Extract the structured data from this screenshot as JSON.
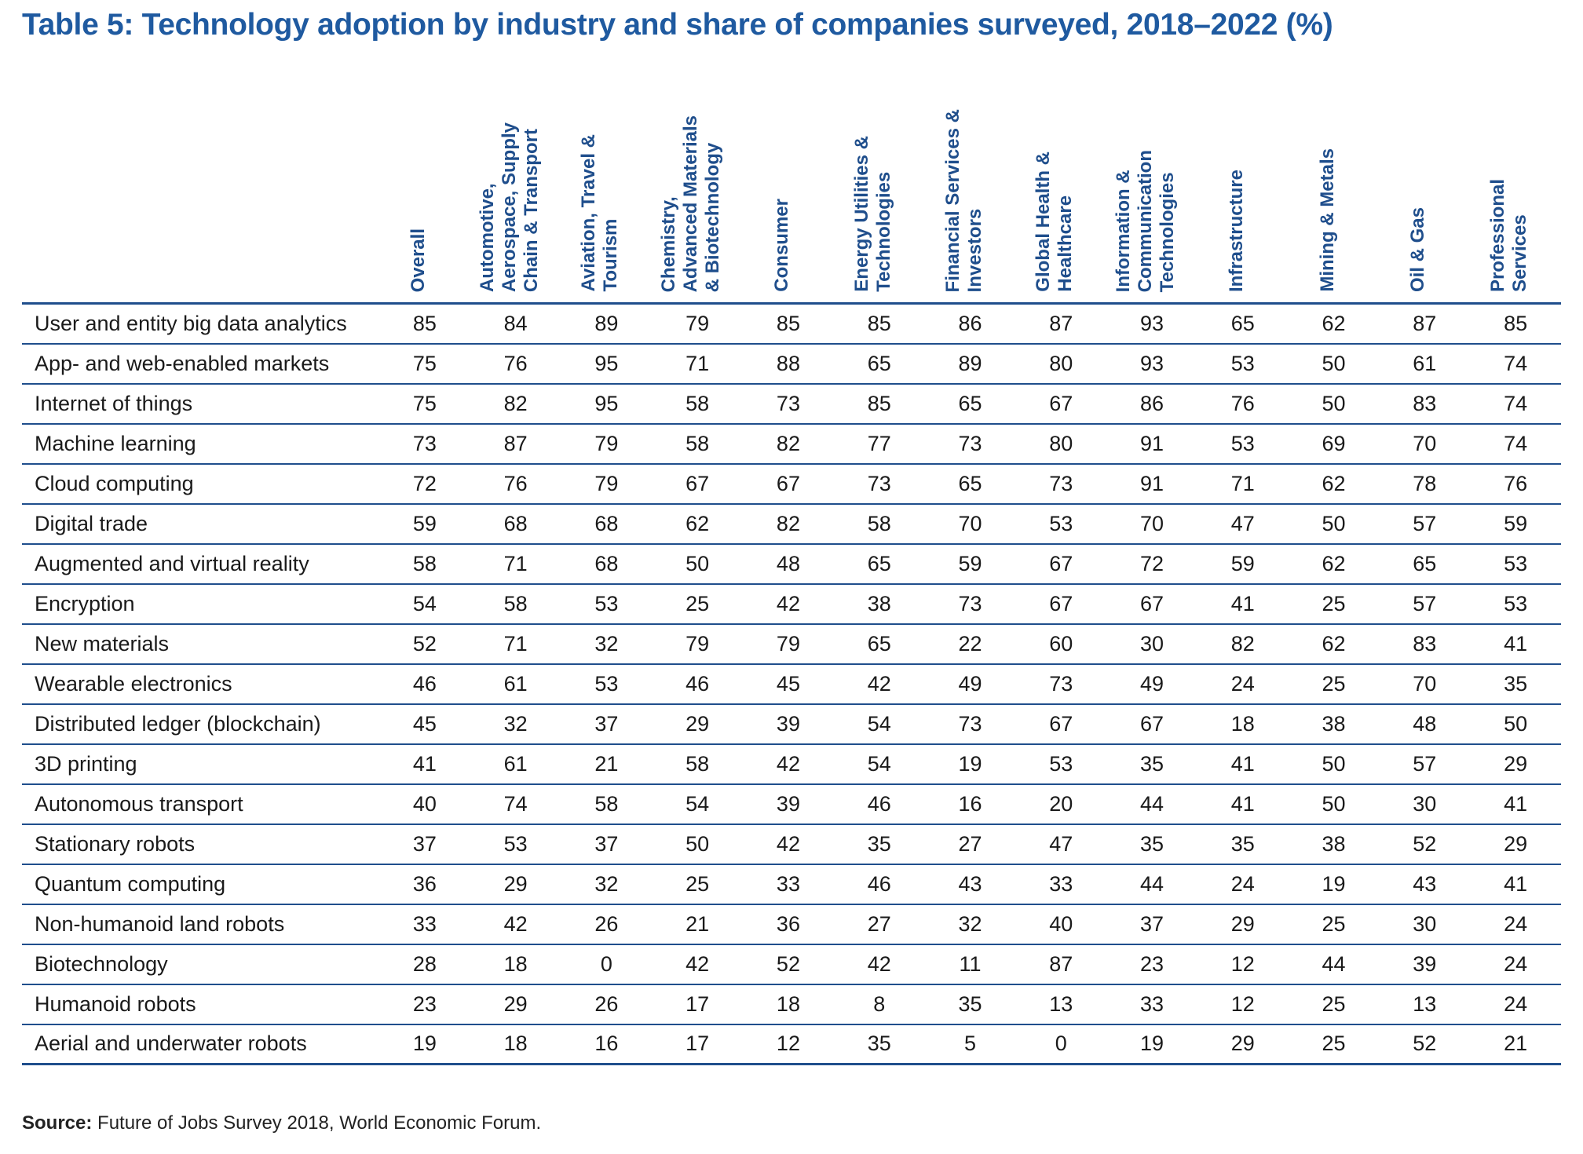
{
  "title": "Table 5: Technology adoption by industry and share of companies surveyed, 2018–2022 (%)",
  "columns": [
    "Overall",
    "Automotive,\nAerospace, Supply\nChain & Transport",
    "Aviation, Travel &\nTourism",
    "Chemistry,\nAdvanced Materials\n& Biotechnology",
    "Consumer",
    "Energy Utilities &\nTechnologies",
    "Financial Services &\nInvestors",
    "Global Health &\nHealthcare",
    "Information &\nCommunication\nTechnologies",
    "Infrastructure",
    "Mining & Metals",
    "Oil & Gas",
    "Professional\nServices"
  ],
  "rows": [
    {
      "label": "User and entity big data analytics",
      "values": [
        "85",
        "84",
        "89",
        "79",
        "85",
        "85",
        "86",
        "87",
        "93",
        "65",
        "62",
        "87",
        "85"
      ]
    },
    {
      "label": "App- and web-enabled markets",
      "values": [
        "75",
        "76",
        "95",
        "71",
        "88",
        "65",
        "89",
        "80",
        "93",
        "53",
        "50",
        "61",
        "74"
      ]
    },
    {
      "label": "Internet of things",
      "values": [
        "75",
        "82",
        "95",
        "58",
        "73",
        "85",
        "65",
        "67",
        "86",
        "76",
        "50",
        "83",
        "74"
      ]
    },
    {
      "label": "Machine learning",
      "values": [
        "73",
        "87",
        "79",
        "58",
        "82",
        "77",
        "73",
        "80",
        "91",
        "53",
        "69",
        "70",
        "74"
      ]
    },
    {
      "label": "Cloud computing",
      "values": [
        "72",
        "76",
        "79",
        "67",
        "67",
        "73",
        "65",
        "73",
        "91",
        "71",
        "62",
        "78",
        "76"
      ]
    },
    {
      "label": "Digital trade",
      "values": [
        "59",
        "68",
        "68",
        "62",
        "82",
        "58",
        "70",
        "53",
        "70",
        "47",
        "50",
        "57",
        "59"
      ]
    },
    {
      "label": "Augmented and virtual reality",
      "values": [
        "58",
        "71",
        "68",
        "50",
        "48",
        "65",
        "59",
        "67",
        "72",
        "59",
        "62",
        "65",
        "53"
      ]
    },
    {
      "label": "Encryption",
      "values": [
        "54",
        "58",
        "53",
        "25",
        "42",
        "38",
        "73",
        "67",
        "67",
        "41",
        "25",
        "57",
        "53"
      ]
    },
    {
      "label": "New materials",
      "values": [
        "52",
        "71",
        "32",
        "79",
        "79",
        "65",
        "22",
        "60",
        "30",
        "82",
        "62",
        "83",
        "41"
      ]
    },
    {
      "label": "Wearable electronics",
      "values": [
        "46",
        "61",
        "53",
        "46",
        "45",
        "42",
        "49",
        "73",
        "49",
        "24",
        "25",
        "70",
        "35"
      ]
    },
    {
      "label": "Distributed ledger (blockchain)",
      "values": [
        "45",
        "32",
        "37",
        "29",
        "39",
        "54",
        "73",
        "67",
        "67",
        "18",
        "38",
        "48",
        "50"
      ]
    },
    {
      "label": "3D printing",
      "values": [
        "41",
        "61",
        "21",
        "58",
        "42",
        "54",
        "19",
        "53",
        "35",
        "41",
        "50",
        "57",
        "29"
      ]
    },
    {
      "label": "Autonomous transport",
      "values": [
        "40",
        "74",
        "58",
        "54",
        "39",
        "46",
        "16",
        "20",
        "44",
        "41",
        "50",
        "30",
        "41"
      ]
    },
    {
      "label": "Stationary robots",
      "values": [
        "37",
        "53",
        "37",
        "50",
        "42",
        "35",
        "27",
        "47",
        "35",
        "35",
        "38",
        "52",
        "29"
      ]
    },
    {
      "label": "Quantum computing",
      "values": [
        "36",
        "29",
        "32",
        "25",
        "33",
        "46",
        "43",
        "33",
        "44",
        "24",
        "19",
        "43",
        "41"
      ]
    },
    {
      "label": "Non-humanoid land robots",
      "values": [
        "33",
        "42",
        "26",
        "21",
        "36",
        "27",
        "32",
        "40",
        "37",
        "29",
        "25",
        "30",
        "24"
      ]
    },
    {
      "label": "Biotechnology",
      "values": [
        "28",
        "18",
        "0",
        "42",
        "52",
        "42",
        "11",
        "87",
        "23",
        "12",
        "44",
        "39",
        "24"
      ]
    },
    {
      "label": "Humanoid robots",
      "values": [
        "23",
        "29",
        "26",
        "17",
        "18",
        "8",
        "35",
        "13",
        "33",
        "12",
        "25",
        "13",
        "24"
      ]
    },
    {
      "label": "Aerial and underwater robots",
      "values": [
        "19",
        "18",
        "16",
        "17",
        "12",
        "35",
        "5",
        "0",
        "19",
        "29",
        "25",
        "52",
        "21"
      ]
    }
  ],
  "source": {
    "label": "Source:",
    "text": " Future of Jobs Survey 2018, World Economic Forum."
  }
}
